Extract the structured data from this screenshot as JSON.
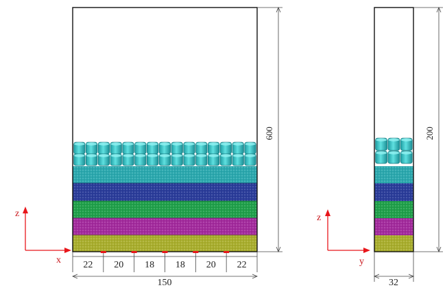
{
  "front_view": {
    "height_label": "600",
    "width_label": "150",
    "segment_labels": [
      "22",
      "20",
      "18",
      "18",
      "20",
      "22"
    ],
    "axis_vertical": "z",
    "axis_horizontal": "x"
  },
  "side_view": {
    "height_label": "200",
    "width_label": "32",
    "axis_vertical": "z",
    "axis_horizontal": "y"
  },
  "colors": {
    "cylinder": "#2ec6c9",
    "layer_cyan": "#2aa8ae",
    "layer_blue": "#2a3c9a",
    "layer_green": "#1fa04a",
    "layer_purple": "#a32a9d",
    "layer_yellow": "#a9ae2c",
    "axis_red": "#e8161b",
    "outline": "#111111",
    "dim_line": "#444444"
  }
}
